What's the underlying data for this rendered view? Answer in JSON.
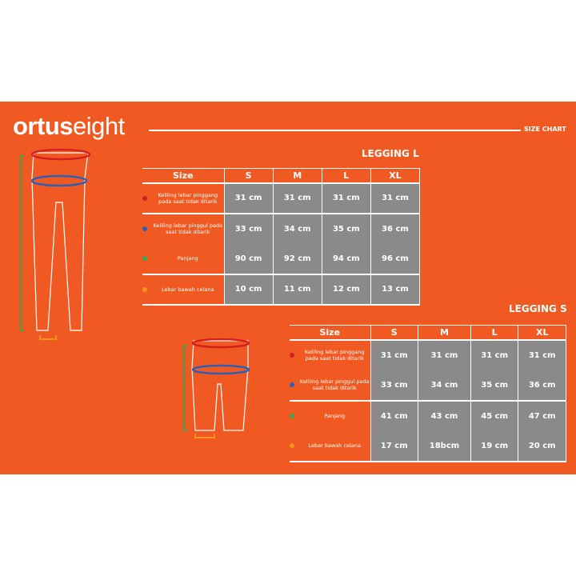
{
  "brand": {
    "name": "ortuseight",
    "prefix": "ortus",
    "suffix": "eight"
  },
  "header": {
    "label": "SIZE CHART"
  },
  "colors": {
    "background": "#f05a22",
    "cell": "#8a8a8a",
    "waist": "#d42020",
    "hip": "#2f5fb5",
    "length": "#3aa655",
    "hem": "#f7941d"
  },
  "tables": [
    {
      "title": "LEGGING L",
      "columns": [
        "Size",
        "S",
        "M",
        "L",
        "XL"
      ],
      "rows": [
        {
          "label": "Keliling lebar pinggang pada saat tidak ditarik",
          "dot": "waist",
          "values": [
            "31 cm",
            "31 cm",
            "31 cm",
            "31 cm"
          ]
        },
        {
          "label": "Keliling lebar pinggul pada saat tidak ditarik",
          "dot": "hip",
          "values": [
            "33 cm",
            "34 cm",
            "35 cm",
            "36 cm"
          ]
        },
        {
          "label": "Panjang",
          "dot": "length",
          "values": [
            "90 cm",
            "92 cm",
            "94 cm",
            "96 cm"
          ]
        },
        {
          "label": "Lebar bawah celana",
          "dot": "hem",
          "values": [
            "10 cm",
            "11 cm",
            "12 cm",
            "13 cm"
          ]
        }
      ]
    },
    {
      "title": "LEGGING S",
      "columns": [
        "Size",
        "S",
        "M",
        "L",
        "XL"
      ],
      "rows": [
        {
          "label": "Keliling lebar pinggang pada saat tidak ditarik",
          "dot": "waist",
          "values": [
            "31 cm",
            "31 cm",
            "31 cm",
            "31 cm"
          ]
        },
        {
          "label": "Keliling lebar pinggul pada saat tidak ditarik",
          "dot": "hip",
          "values": [
            "33 cm",
            "34 cm",
            "35 cm",
            "36 cm"
          ]
        },
        {
          "label": "Panjang",
          "dot": "length",
          "values": [
            "41 cm",
            "43 cm",
            "45 cm",
            "47 cm"
          ]
        },
        {
          "label": "Lebar bawah celana",
          "dot": "hem",
          "values": [
            "17 cm",
            "18bcm",
            "19 cm",
            "20 cm"
          ]
        }
      ]
    }
  ]
}
